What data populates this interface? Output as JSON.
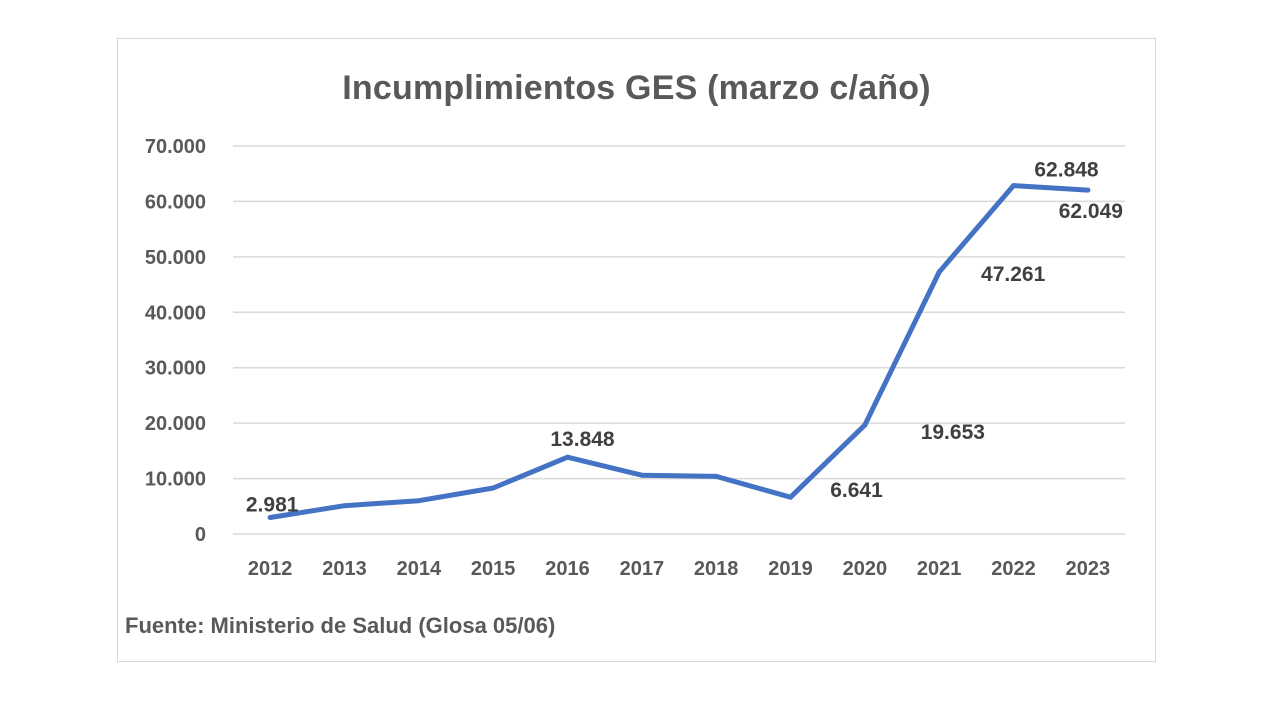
{
  "chart_data": {
    "type": "line",
    "title": "Incumplimientos GES (marzo c/año)",
    "categories": [
      "2012",
      "2013",
      "2014",
      "2015",
      "2016",
      "2017",
      "2018",
      "2019",
      "2020",
      "2021",
      "2022",
      "2023"
    ],
    "values": [
      2981,
      5100,
      6000,
      8300,
      13848,
      10600,
      10400,
      6641,
      19653,
      47261,
      62848,
      62049
    ],
    "data_labels": {
      "2012": "2.981",
      "2016": "13.848",
      "2019": "6.641",
      "2020": "19.653",
      "2021": "47.261",
      "2022": "62.848",
      "2023": "62.049"
    },
    "yticks": [
      "0",
      "10.000",
      "20.000",
      "30.000",
      "40.000",
      "50.000",
      "60.000",
      "70.000"
    ],
    "ylim": [
      0,
      70000
    ],
    "grid": true,
    "legend": "none",
    "line_color": "#4472C4",
    "source": "Fuente: Ministerio de Salud (Glosa 05/06)"
  }
}
